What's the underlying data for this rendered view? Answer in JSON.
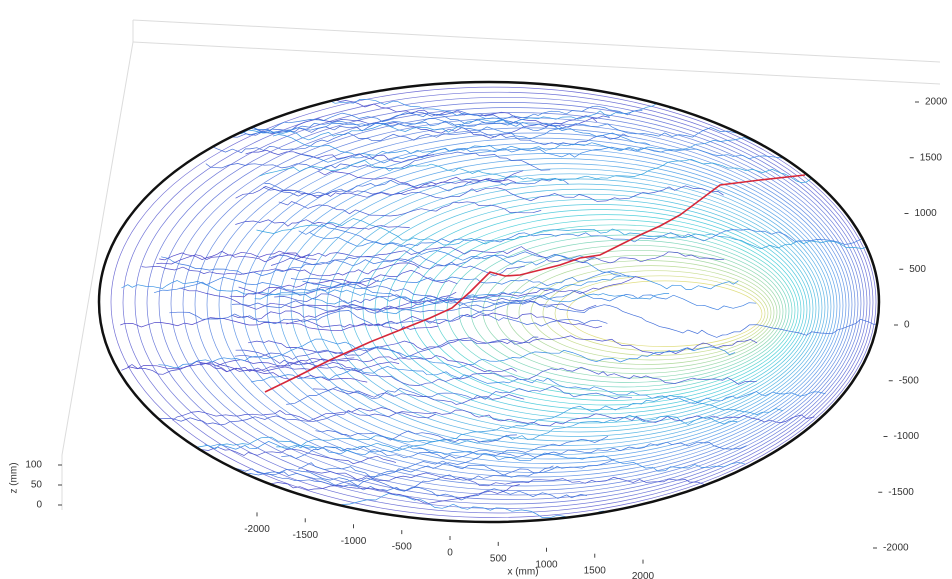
{
  "chart_data": {
    "type": "contour3",
    "xlabel": "x (mm)",
    "zlabel": "z (mm)",
    "xlim": [
      -2000,
      2000
    ],
    "xticks": [
      -2000,
      -1500,
      -1000,
      -500,
      0,
      500,
      1000,
      1500,
      2000
    ],
    "ylim": [
      -2000,
      2000
    ],
    "yticks": [
      -2000,
      -1500,
      -1000,
      -500,
      0,
      500,
      1000,
      1500,
      2000
    ],
    "zlim": [
      0,
      100
    ],
    "zticks": [
      0,
      50,
      100
    ]
  }
}
